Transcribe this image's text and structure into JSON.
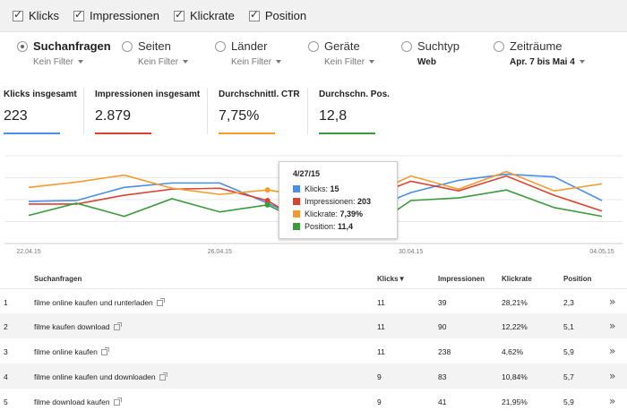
{
  "checkboxes": [
    {
      "label": "Klicks",
      "checked": true
    },
    {
      "label": "Impressionen",
      "checked": true
    },
    {
      "label": "Klickrate",
      "checked": true
    },
    {
      "label": "Position",
      "checked": true
    }
  ],
  "dimensions": [
    {
      "label": "Suchanfragen",
      "sub": "Kein Filter",
      "selected": true
    },
    {
      "label": "Seiten",
      "sub": "Kein Filter",
      "selected": false
    },
    {
      "label": "Länder",
      "sub": "Kein Filter",
      "selected": false
    },
    {
      "label": "Geräte",
      "sub": "Kein Filter",
      "selected": false
    },
    {
      "label": "Suchtyp",
      "sub": "Web",
      "selected": false
    },
    {
      "label": "Zeiträume",
      "sub": "Apr. 7 bis Mai 4",
      "selected": false
    }
  ],
  "totals": [
    {
      "label": "Klicks insgesamt",
      "value": "223",
      "color": "#4a8ee8"
    },
    {
      "label": "Impressionen insgesamt",
      "value": "2.879",
      "color": "#d9432f"
    },
    {
      "label": "Durchschnittl. CTR",
      "value": "7,75%",
      "color": "#f29c2f"
    },
    {
      "label": "Durchschn. Pos.",
      "value": "12,8",
      "color": "#3a9b3a"
    }
  ],
  "chart_data": {
    "type": "line",
    "x": [
      "22.04.15",
      "23.04.15",
      "24.04.15",
      "25.04.15",
      "26.04.15",
      "27.04.15",
      "28.04.15",
      "29.04.15",
      "30.04.15",
      "01.05.15",
      "02.05.15",
      "03.05.15",
      "04.05.15"
    ],
    "x_tick_labels": [
      "22.04.15",
      "26.04.15",
      "30.04.15",
      "04.05.15"
    ],
    "series": [
      {
        "name": "Klicks",
        "color": "#4a8ee8",
        "values": [
          0.48,
          0.49,
          0.64,
          0.69,
          0.69,
          0.46,
          0.22,
          0.36,
          0.58,
          0.72,
          0.79,
          0.76,
          0.49
        ]
      },
      {
        "name": "Impressionen",
        "color": "#d9432f",
        "values": [
          0.45,
          0.45,
          0.55,
          0.62,
          0.63,
          0.49,
          0.16,
          0.5,
          0.71,
          0.6,
          0.77,
          0.55,
          0.37
        ]
      },
      {
        "name": "Klickrate",
        "color": "#f29c2f",
        "values": [
          0.64,
          0.7,
          0.78,
          0.63,
          0.56,
          0.61,
          0.53,
          0.52,
          0.77,
          0.62,
          0.82,
          0.6,
          0.68
        ]
      },
      {
        "name": "Position",
        "color": "#3a9b3a",
        "values": [
          0.32,
          0.46,
          0.31,
          0.51,
          0.36,
          0.44,
          0.18,
          0.12,
          0.49,
          0.52,
          0.61,
          0.41,
          0.31
        ]
      }
    ],
    "grid": true,
    "legend": "none"
  },
  "tooltip": {
    "date": "4/27/15",
    "rows": [
      {
        "name": "Klicks",
        "value": "15",
        "color": "#4a8ee8"
      },
      {
        "name": "Impressionen",
        "value": "203",
        "color": "#d9432f"
      },
      {
        "name": "Klickrate",
        "value": "7,39%",
        "color": "#f29c2f"
      },
      {
        "name": "Position",
        "value": "11,4",
        "color": "#3a9b3a"
      }
    ]
  },
  "table": {
    "headers": {
      "query": "Suchanfragen",
      "clicks": "Klicks▼",
      "impressions": "Impressionen",
      "ctr": "Klickrate",
      "position": "Position"
    },
    "rows": [
      {
        "num": "1",
        "query": "filme online kaufen und runterladen",
        "clicks": "11",
        "impressions": "39",
        "ctr": "28,21%",
        "position": "2,3"
      },
      {
        "num": "2",
        "query": "filme kaufen download",
        "clicks": "11",
        "impressions": "90",
        "ctr": "12,22%",
        "position": "5,1"
      },
      {
        "num": "3",
        "query": "filme online kaufen",
        "clicks": "11",
        "impressions": "238",
        "ctr": "4,62%",
        "position": "5,9"
      },
      {
        "num": "4",
        "query": "filme online kaufen und downloaden",
        "clicks": "9",
        "impressions": "83",
        "ctr": "10,84%",
        "position": "5,7"
      },
      {
        "num": "5",
        "query": "filme download kaufen",
        "clicks": "9",
        "impressions": "41",
        "ctr": "21,95%",
        "position": "5,9"
      }
    ],
    "row_action_icon": "double-chevron-right-icon"
  }
}
